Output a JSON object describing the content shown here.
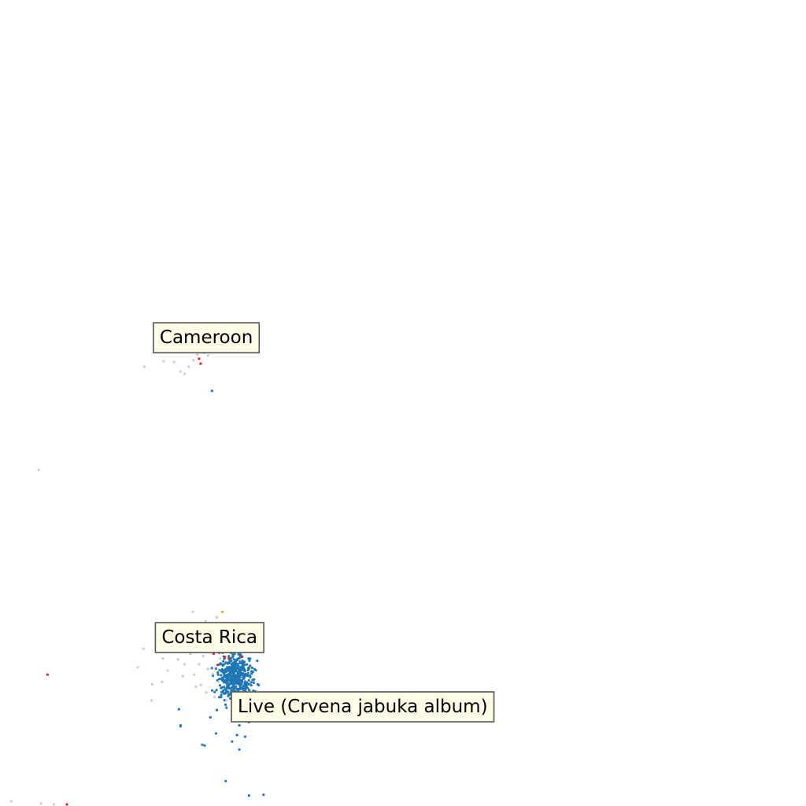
{
  "chart_data": {
    "type": "scatter",
    "title": "",
    "xlabel": "",
    "ylabel": "",
    "grid": false,
    "axes_visible": false,
    "xlim": [
      0,
      100
    ],
    "ylim": [
      0,
      100
    ],
    "colors": {
      "neutral": "#cccccc",
      "blue": "#1f77b4",
      "red": "#d62728",
      "salmon": "#f4b8a0",
      "mint": "#c8e6c9",
      "olive": "#bcbd22",
      "label_fill": "#fefde8",
      "label_border": "#555555"
    },
    "annotations": [
      {
        "text": "Cameroon",
        "x": 25.6,
        "y": 58.1
      },
      {
        "text": "Costa Rica",
        "x": 26.0,
        "y": 20.9
      },
      {
        "text": "Live (Crvena jabuka album)",
        "x": 45.0,
        "y": 12.3
      }
    ],
    "series": [
      {
        "name": "gray",
        "color": "#cccccc",
        "points": [
          [
            17.9,
            54.5
          ],
          [
            20.3,
            55.2
          ],
          [
            21.6,
            55.1
          ],
          [
            22.4,
            53.9
          ],
          [
            22.9,
            53.6
          ],
          [
            23.4,
            54.5
          ],
          [
            24.0,
            55.3
          ],
          [
            24.5,
            56.0
          ],
          [
            25.3,
            56.2
          ],
          [
            26.0,
            56.5
          ],
          [
            26.9,
            56.9
          ],
          [
            25.8,
            55.9
          ],
          [
            21.1,
            57.2
          ],
          [
            22.0,
            56.8
          ],
          [
            23.7,
            57.0
          ],
          [
            27.0,
            56.5
          ],
          [
            24.8,
            54.8
          ],
          [
            19.2,
            56.6
          ],
          [
            4.8,
            41.7
          ],
          [
            17.1,
            17.2
          ],
          [
            17.8,
            19.5
          ],
          [
            18.9,
            15.1
          ],
          [
            20.2,
            18.3
          ],
          [
            20.9,
            19.1
          ],
          [
            21.3,
            20.2
          ],
          [
            22.1,
            18.2
          ],
          [
            22.9,
            17.6
          ],
          [
            23.6,
            18.9
          ],
          [
            24.1,
            16.3
          ],
          [
            24.7,
            17.6
          ],
          [
            25.2,
            18.6
          ],
          [
            25.8,
            17.0
          ],
          [
            26.4,
            16.4
          ],
          [
            26.0,
            19.3
          ],
          [
            23.3,
            20.0
          ],
          [
            22.7,
            16.1
          ],
          [
            24.9,
            15.0
          ],
          [
            25.6,
            14.1
          ],
          [
            26.6,
            13.5
          ],
          [
            27.1,
            15.4
          ],
          [
            24.3,
            14.8
          ],
          [
            23.7,
            19.6
          ],
          [
            21.8,
            19.9
          ],
          [
            20.8,
            16.8
          ],
          [
            26.8,
            21.6
          ],
          [
            27.3,
            18.3
          ],
          [
            26.2,
            20.4
          ],
          [
            25.3,
            20.9
          ],
          [
            28.1,
            13.1
          ],
          [
            18.8,
            13.1
          ],
          [
            20.1,
            15.4
          ],
          [
            23.9,
            24.1
          ],
          [
            25.5,
            22.9
          ],
          [
            27.5,
            22.4
          ],
          [
            1.4,
            0.6
          ],
          [
            5.1,
            0.3
          ],
          [
            6.7,
            0.2
          ]
        ]
      },
      {
        "name": "blue",
        "color": "#1f77b4",
        "points": [
          [
            26.3,
            51.5
          ],
          [
            28.2,
            16.8
          ],
          [
            28.5,
            16.1
          ],
          [
            28.7,
            15.5
          ],
          [
            29.0,
            14.8
          ],
          [
            29.3,
            15.9
          ],
          [
            29.6,
            16.6
          ],
          [
            29.9,
            15.2
          ],
          [
            30.2,
            14.4
          ],
          [
            30.5,
            16.2
          ],
          [
            27.9,
            15.6
          ],
          [
            28.4,
            14.6
          ],
          [
            29.5,
            17.1
          ],
          [
            30.0,
            17.3
          ],
          [
            28.8,
            17.3
          ],
          [
            30.4,
            15.0
          ],
          [
            29.1,
            13.9
          ],
          [
            27.7,
            14.3
          ],
          [
            30.7,
            13.9
          ],
          [
            27.2,
            13.5
          ],
          [
            28.1,
            12.2
          ],
          [
            29.0,
            12.4
          ],
          [
            30.2,
            11.3
          ],
          [
            29.7,
            10.0
          ],
          [
            30.9,
            10.4
          ],
          [
            31.2,
            12.0
          ],
          [
            26.1,
            11.0
          ],
          [
            26.9,
            11.9
          ],
          [
            22.2,
            12.0
          ],
          [
            22.4,
            9.9
          ],
          [
            26.8,
            9.0
          ],
          [
            29.4,
            8.8
          ],
          [
            30.4,
            8.6
          ],
          [
            28.8,
            8.0
          ],
          [
            31.7,
            14.2
          ],
          [
            32.1,
            15.0
          ],
          [
            25.1,
            7.6
          ],
          [
            25.4,
            7.5
          ],
          [
            29.7,
            7.0
          ],
          [
            22.4,
            10.0
          ],
          [
            28.0,
            3.1
          ],
          [
            30.9,
            1.3
          ],
          [
            32.7,
            1.4
          ]
        ]
      },
      {
        "name": "red",
        "color": "#d62728",
        "points": [
          [
            24.7,
            55.5
          ],
          [
            24.9,
            54.9
          ],
          [
            26.5,
            18.9
          ],
          [
            27.2,
            19.0
          ],
          [
            27.9,
            18.5
          ],
          [
            28.4,
            18.3
          ],
          [
            30.0,
            18.5
          ],
          [
            27.0,
            17.5
          ],
          [
            5.9,
            16.3
          ],
          [
            8.3,
            0.2
          ]
        ]
      },
      {
        "name": "salmon",
        "color": "#f4b8a0",
        "points": [
          [
            25.8,
            57.0
          ],
          [
            26.3,
            57.7
          ],
          [
            26.6,
            58.2
          ],
          [
            25.4,
            56.7
          ],
          [
            26.0,
            57.3
          ],
          [
            26.8,
            21.2
          ],
          [
            27.0,
            20.5
          ],
          [
            26.6,
            22.4
          ],
          [
            27.4,
            21.5
          ],
          [
            26.9,
            23.4
          ],
          [
            27.6,
            19.8
          ]
        ]
      },
      {
        "name": "mint",
        "color": "#c8e6c9",
        "points": [
          [
            23.8,
            57.5
          ],
          [
            24.2,
            57.1
          ],
          [
            30.2,
            13.7
          ],
          [
            31.0,
            13.2
          ]
        ]
      },
      {
        "name": "olive",
        "color": "#bcbd22",
        "points": [
          [
            27.6,
            24.1
          ]
        ]
      }
    ],
    "dense_cluster": {
      "color": "#1f77b4",
      "center": [
        29.2,
        15.8
      ],
      "spread": [
        1.1,
        1.4
      ],
      "count": 420
    }
  }
}
